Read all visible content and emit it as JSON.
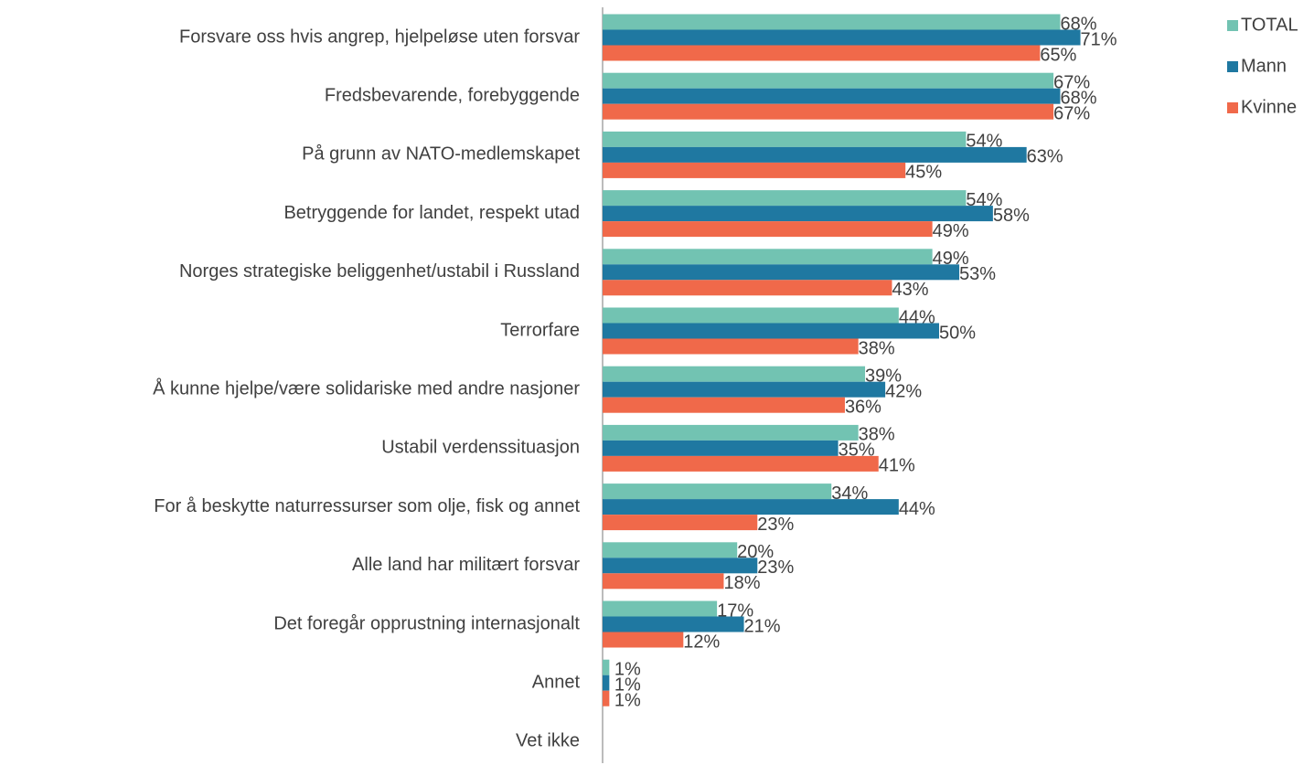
{
  "chart_data": {
    "type": "bar",
    "orientation": "horizontal",
    "categories": [
      "Forsvare oss hvis angrep, hjelpeløse uten forsvar",
      "Fredsbevarende, forebyggende",
      "På grunn av NATO-medlemskapet",
      "Betryggende for landet, respekt utad",
      "Norges strategiske beliggenhet/ustabil i Russland",
      "Terrorfare",
      "Å kunne hjelpe/være solidariske med andre nasjoner",
      "Ustabil verdenssituasjon",
      "For å beskytte naturressurser som olje, fisk og annet",
      "Alle land har militært forsvar",
      "Det foregår opprustning internasjonalt",
      "Annet",
      "Vet ikke"
    ],
    "series": [
      {
        "name": "TOTAL",
        "color": "#72c3b2",
        "values": [
          68,
          67,
          54,
          54,
          49,
          44,
          39,
          38,
          34,
          20,
          17,
          1,
          null
        ],
        "value_labels": [
          "68%",
          "67%",
          "54%",
          "54%",
          "49%",
          "44%",
          "39%",
          "38%",
          "34%",
          "20%",
          "17%",
          "1%",
          null
        ]
      },
      {
        "name": "Mann",
        "color": "#1f78a1",
        "values": [
          71,
          68,
          63,
          58,
          53,
          50,
          42,
          35,
          44,
          23,
          21,
          1,
          null
        ],
        "value_labels": [
          "71%",
          "68%",
          "63%",
          "58%",
          "53%",
          "50%",
          "42%",
          "35%",
          "44%",
          "23%",
          "21%",
          "1%",
          null
        ]
      },
      {
        "name": "Kvinne",
        "color": "#f0694a",
        "values": [
          65,
          67,
          45,
          49,
          43,
          38,
          36,
          41,
          23,
          18,
          12,
          1,
          null
        ],
        "value_labels": [
          "65%",
          "67%",
          "45%",
          "49%",
          "43%",
          "38%",
          "36%",
          "41%",
          "23%",
          "18%",
          "12%",
          "1%",
          null
        ]
      }
    ],
    "xlim": [
      0,
      100
    ],
    "legend": "top-right"
  }
}
